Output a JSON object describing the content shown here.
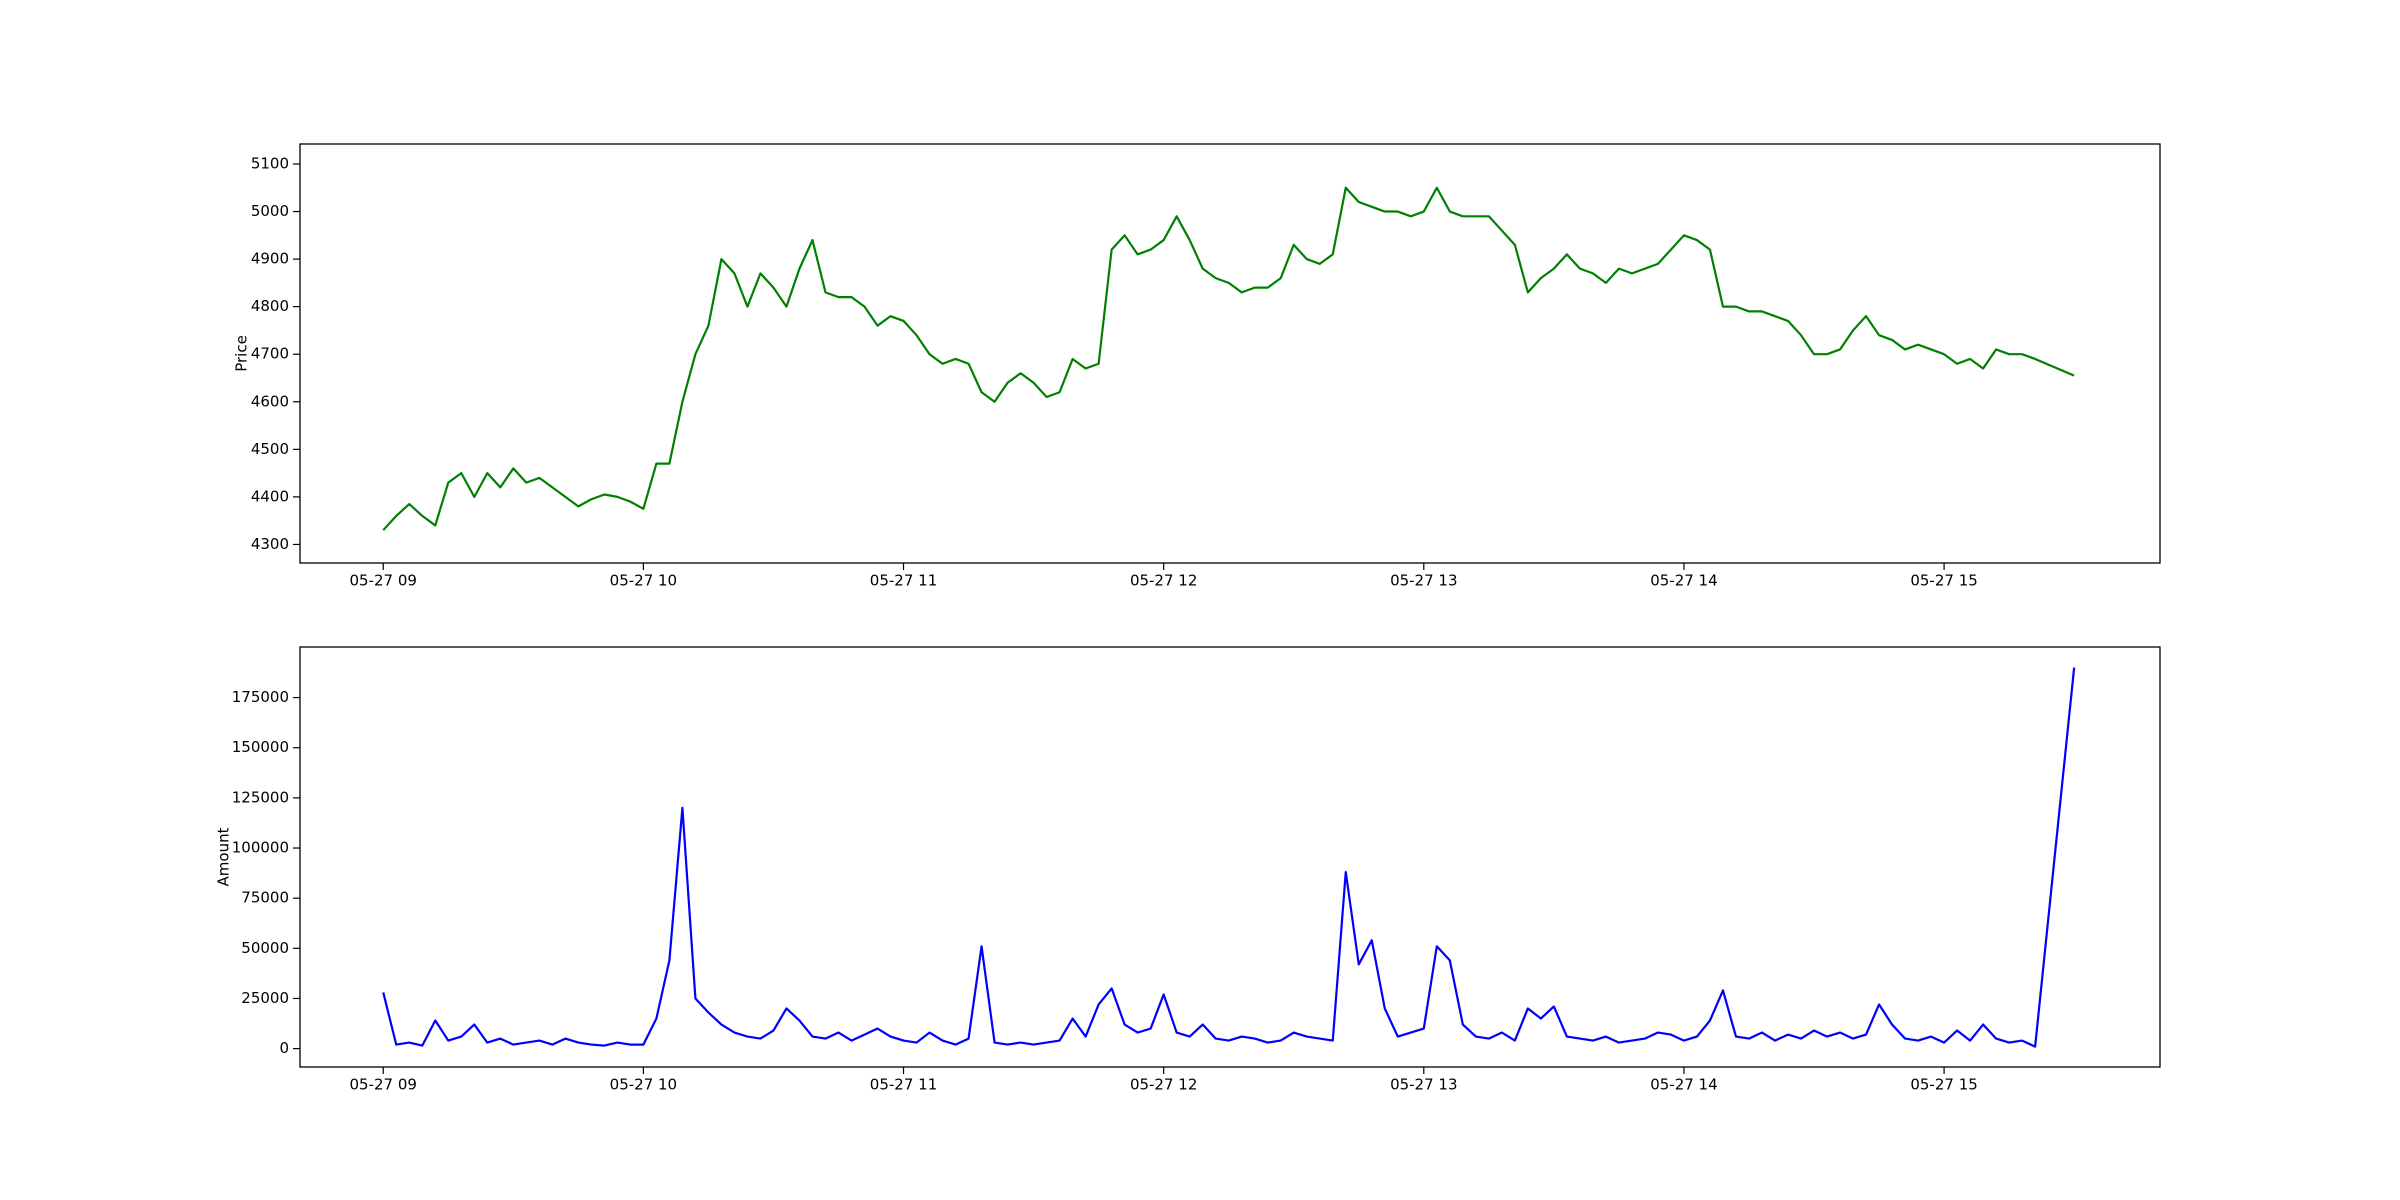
{
  "chart_data": [
    {
      "type": "line",
      "ylabel": "Price",
      "color": "#008000",
      "x": [
        9.0,
        9.05,
        9.1,
        9.15,
        9.2,
        9.25,
        9.3,
        9.35,
        9.4,
        9.45,
        9.5,
        9.55,
        9.6,
        9.65,
        9.7,
        9.75,
        9.8,
        9.85,
        9.9,
        9.95,
        10.0,
        10.05,
        10.1,
        10.15,
        10.2,
        10.25,
        10.3,
        10.35,
        10.4,
        10.45,
        10.5,
        10.55,
        10.6,
        10.65,
        10.7,
        10.75,
        10.8,
        10.85,
        10.9,
        10.95,
        11.0,
        11.05,
        11.1,
        11.15,
        11.2,
        11.25,
        11.3,
        11.35,
        11.4,
        11.45,
        11.5,
        11.55,
        11.6,
        11.65,
        11.7,
        11.75,
        11.8,
        11.85,
        11.9,
        11.95,
        12.0,
        12.05,
        12.1,
        12.15,
        12.2,
        12.25,
        12.3,
        12.35,
        12.4,
        12.45,
        12.5,
        12.55,
        12.6,
        12.65,
        12.7,
        12.75,
        12.8,
        12.85,
        12.9,
        12.95,
        13.0,
        13.05,
        13.1,
        13.15,
        13.2,
        13.25,
        13.3,
        13.35,
        13.4,
        13.45,
        13.5,
        13.55,
        13.6,
        13.65,
        13.7,
        13.75,
        13.8,
        13.85,
        13.9,
        13.95,
        14.0,
        14.05,
        14.1,
        14.15,
        14.2,
        14.25,
        14.3,
        14.35,
        14.4,
        14.45,
        14.5,
        14.55,
        14.6,
        14.65,
        14.7,
        14.75,
        14.8,
        14.85,
        14.9,
        14.95,
        15.0,
        15.05,
        15.1,
        15.15,
        15.2,
        15.25,
        15.3,
        15.35,
        15.5
      ],
      "values": [
        4330,
        4360,
        4385,
        4360,
        4340,
        4430,
        4450,
        4400,
        4450,
        4420,
        4460,
        4430,
        4440,
        4420,
        4400,
        4380,
        4395,
        4405,
        4400,
        4390,
        4375,
        4470,
        4470,
        4600,
        4700,
        4760,
        4900,
        4870,
        4800,
        4870,
        4840,
        4800,
        4880,
        4940,
        4830,
        4820,
        4820,
        4800,
        4760,
        4780,
        4770,
        4740,
        4700,
        4680,
        4690,
        4680,
        4620,
        4600,
        4640,
        4660,
        4640,
        4610,
        4620,
        4690,
        4670,
        4680,
        4920,
        4950,
        4910,
        4920,
        4940,
        4990,
        4940,
        4880,
        4860,
        4850,
        4830,
        4840,
        4840,
        4860,
        4930,
        4900,
        4890,
        4910,
        5050,
        5020,
        5010,
        5000,
        5000,
        4990,
        5000,
        5050,
        5000,
        4990,
        4990,
        4990,
        4960,
        4930,
        4830,
        4860,
        4880,
        4910,
        4880,
        4870,
        4850,
        4880,
        4870,
        4880,
        4890,
        4920,
        4950,
        4940,
        4920,
        4800,
        4800,
        4790,
        4790,
        4780,
        4770,
        4740,
        4700,
        4700,
        4710,
        4750,
        4780,
        4740,
        4730,
        4710,
        4720,
        4710,
        4700,
        4680,
        4690,
        4670,
        4710,
        4700,
        4700,
        4690,
        4655
      ],
      "xlim": [
        8.68,
        15.83
      ],
      "xticks": [
        {
          "value": 9,
          "label": "05-27 09"
        },
        {
          "value": 10,
          "label": "05-27 10"
        },
        {
          "value": 11,
          "label": "05-27 11"
        },
        {
          "value": 12,
          "label": "05-27 12"
        },
        {
          "value": 13,
          "label": "05-27 13"
        },
        {
          "value": 14,
          "label": "05-27 14"
        },
        {
          "value": 15,
          "label": "05-27 15"
        }
      ],
      "ylim": [
        4261,
        5142
      ],
      "yticks": [
        4300,
        4400,
        4500,
        4600,
        4700,
        4800,
        4900,
        5000,
        5100
      ],
      "grid": false
    },
    {
      "type": "line",
      "ylabel": "Amount",
      "color": "#0000ff",
      "x": [
        9.0,
        9.05,
        9.1,
        9.15,
        9.2,
        9.25,
        9.3,
        9.35,
        9.4,
        9.45,
        9.5,
        9.55,
        9.6,
        9.65,
        9.7,
        9.75,
        9.8,
        9.85,
        9.9,
        9.95,
        10.0,
        10.05,
        10.1,
        10.15,
        10.2,
        10.25,
        10.3,
        10.35,
        10.4,
        10.45,
        10.5,
        10.55,
        10.6,
        10.65,
        10.7,
        10.75,
        10.8,
        10.85,
        10.9,
        10.95,
        11.0,
        11.05,
        11.1,
        11.15,
        11.2,
        11.25,
        11.3,
        11.35,
        11.4,
        11.45,
        11.5,
        11.55,
        11.6,
        11.65,
        11.7,
        11.75,
        11.8,
        11.85,
        11.9,
        11.95,
        12.0,
        12.05,
        12.1,
        12.15,
        12.2,
        12.25,
        12.3,
        12.35,
        12.4,
        12.45,
        12.5,
        12.55,
        12.6,
        12.65,
        12.7,
        12.75,
        12.8,
        12.85,
        12.9,
        12.95,
        13.0,
        13.05,
        13.1,
        13.15,
        13.2,
        13.25,
        13.3,
        13.35,
        13.4,
        13.45,
        13.5,
        13.55,
        13.6,
        13.65,
        13.7,
        13.75,
        13.8,
        13.85,
        13.9,
        13.95,
        14.0,
        14.05,
        14.1,
        14.15,
        14.2,
        14.25,
        14.3,
        14.35,
        14.4,
        14.45,
        14.5,
        14.55,
        14.6,
        14.65,
        14.7,
        14.75,
        14.8,
        14.85,
        14.9,
        14.95,
        15.0,
        15.05,
        15.1,
        15.15,
        15.2,
        15.25,
        15.3,
        15.35,
        15.5
      ],
      "values": [
        28000,
        2000,
        3000,
        1500,
        14000,
        4000,
        6000,
        12000,
        3000,
        5000,
        2000,
        3000,
        4000,
        2000,
        5000,
        3000,
        2000,
        1500,
        3000,
        2000,
        2000,
        15000,
        44000,
        120000,
        25000,
        18000,
        12000,
        8000,
        6000,
        5000,
        9000,
        20000,
        14000,
        6000,
        5000,
        8000,
        4000,
        7000,
        10000,
        6000,
        4000,
        3000,
        8000,
        4000,
        2000,
        5000,
        51000,
        3000,
        2000,
        3000,
        2000,
        3000,
        4000,
        15000,
        6000,
        22000,
        30000,
        12000,
        8000,
        10000,
        27000,
        8000,
        6000,
        12000,
        5000,
        4000,
        6000,
        5000,
        3000,
        4000,
        8000,
        6000,
        5000,
        4000,
        88000,
        42000,
        54000,
        20000,
        6000,
        8000,
        10000,
        51000,
        44000,
        12000,
        6000,
        5000,
        8000,
        4000,
        20000,
        15000,
        21000,
        6000,
        5000,
        4000,
        6000,
        3000,
        4000,
        5000,
        8000,
        7000,
        4000,
        6000,
        14000,
        29000,
        6000,
        5000,
        8000,
        4000,
        7000,
        5000,
        9000,
        6000,
        8000,
        5000,
        7000,
        22000,
        12000,
        5000,
        4000,
        6000,
        3000,
        9000,
        4000,
        12000,
        5000,
        3000,
        4000,
        1000,
        190000
      ],
      "xlim": [
        8.68,
        15.83
      ],
      "xticks": [
        {
          "value": 9,
          "label": "05-27 09"
        },
        {
          "value": 10,
          "label": "05-27 10"
        },
        {
          "value": 11,
          "label": "05-27 11"
        },
        {
          "value": 12,
          "label": "05-27 12"
        },
        {
          "value": 13,
          "label": "05-27 13"
        },
        {
          "value": 14,
          "label": "05-27 14"
        },
        {
          "value": 15,
          "label": "05-27 15"
        }
      ],
      "ylim": [
        -9170,
        200218
      ],
      "yticks": [
        0,
        25000,
        50000,
        75000,
        100000,
        125000,
        150000,
        175000
      ],
      "grid": false
    }
  ]
}
